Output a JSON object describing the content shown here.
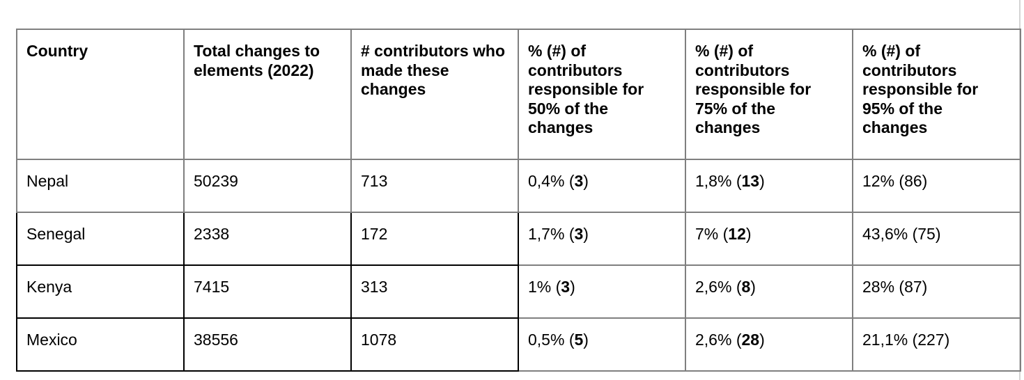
{
  "table": {
    "headers": [
      "Country",
      "Total changes to elements (2022)",
      "# contributors who made these changes",
      "% (#) of contributors responsible for 50% of the changes",
      "% (#) of contributors responsible for 75% of the changes",
      "% (#) of contributors responsible for 95% of the changes"
    ],
    "rows": [
      {
        "country": "Nepal",
        "total_changes": "50239",
        "contributors": "713",
        "p50": {
          "pct": "0,4% (",
          "num": "3",
          "close": ")"
        },
        "p75": {
          "pct": "1,8% (",
          "num": "13",
          "close": ")"
        },
        "p95": "12% (86)"
      },
      {
        "country": "Senegal",
        "total_changes": "2338",
        "contributors": "172",
        "p50": {
          "pct": "1,7% (",
          "num": "3",
          "close": ")"
        },
        "p75": {
          "pct": "7% (",
          "num": "12",
          "close": ")"
        },
        "p95": "43,6% (75)"
      },
      {
        "country": "Kenya",
        "total_changes": "7415",
        "contributors": "313",
        "p50": {
          "pct": "1% (",
          "num": "3",
          "close": ")"
        },
        "p75": {
          "pct": "2,6% (",
          "num": "8",
          "close": ")"
        },
        "p95": "28% (87)"
      },
      {
        "country": "Mexico",
        "total_changes": "38556",
        "contributors": "1078",
        "p50": {
          "pct": "0,5% (",
          "num": "5",
          "close": ")"
        },
        "p75": {
          "pct": "2,6% (",
          "num": "28",
          "close": ")"
        },
        "p95": "21,1% (227)"
      }
    ]
  }
}
